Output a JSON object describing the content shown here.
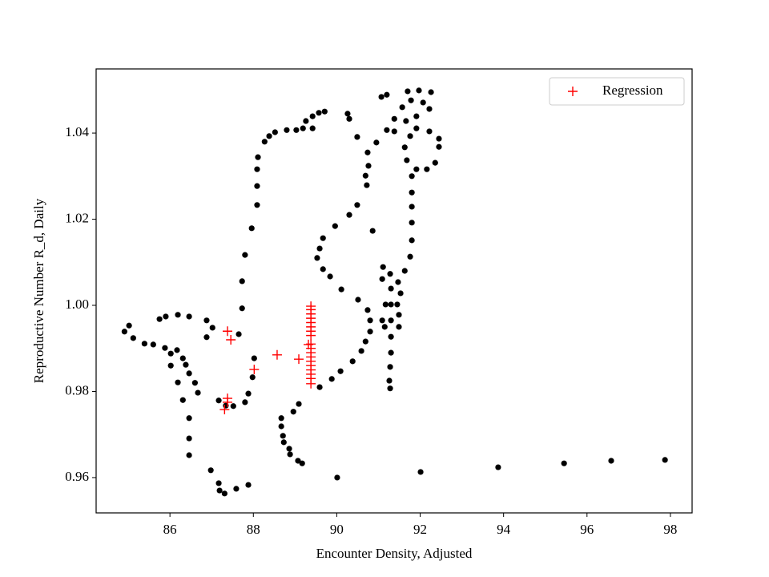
{
  "chart_data": {
    "type": "scatter",
    "xlabel": "Encounter Density, Adjusted",
    "ylabel": "Reproductive Number R_d, Daily",
    "xlim": [
      84.23,
      98.52
    ],
    "ylim": [
      0.9518,
      1.0549
    ],
    "xticks": [
      86,
      88,
      90,
      92,
      94,
      96,
      98
    ],
    "yticks": [
      0.96,
      0.98,
      {
        "value": 1,
        "label": "1.00"
      },
      1.02,
      1.04
    ],
    "legend": "upper right",
    "series": [
      {
        "color": "#000000",
        "marker": "o",
        "x": [
          97.87,
          96.58,
          95.45,
          93.87,
          92.01,
          90.01,
          89.17,
          89.07,
          88.88,
          88.86,
          88.73,
          88.71,
          88.67,
          88.67,
          88.96,
          89.09,
          89.59,
          89.88,
          90.09,
          90.38,
          90.59,
          90.69,
          90.8,
          90.8,
          90.74,
          90.51,
          90.11,
          89.84,
          89.67,
          89.53,
          89.59,
          89.67,
          89.96,
          90.3,
          90.49,
          90.72,
          90.69,
          90.76,
          90.74,
          90.49,
          90.3,
          90.26,
          90.86,
          90.95,
          91.2,
          91.38,
          91.57,
          91.78,
          92.07,
          92.22,
          92.45,
          92.45,
          92.36,
          92.16,
          91.91,
          91.68,
          91.63,
          91.76,
          91.91,
          92.22,
          91.07,
          91.2,
          91.7,
          91.97,
          92.26,
          91.91,
          91.66,
          91.38,
          91.8,
          91.8,
          91.8,
          91.8,
          91.8,
          91.76,
          91.63,
          91.47,
          91.53,
          91.45,
          91.49,
          91.49,
          91.3,
          91.3,
          91.28,
          91.26,
          91.28,
          91.3,
          91.3,
          91.3,
          91.28,
          91.11,
          91.09,
          91.17,
          91.15,
          91.09,
          89.71,
          89.57,
          89.42,
          89.42,
          89.26,
          89.19,
          89.03,
          88.8,
          88.52,
          88.38,
          88.27,
          88.11,
          88.09,
          88.09,
          88.09,
          87.96,
          87.8,
          87.73,
          87.73,
          87.65,
          88.02,
          87.98,
          87.88,
          87.8,
          87.52,
          87.34,
          87.17,
          86.46,
          86.46,
          86.46,
          86.98,
          87.17,
          87.19,
          87.31,
          87.59,
          87.88,
          86.31,
          86.67,
          86.6,
          86.46,
          86.38,
          86.31,
          86.17,
          86.02,
          85.88,
          86.02,
          86.19,
          85.6,
          85.39,
          85.12,
          85.02,
          84.91,
          85.75,
          85.9,
          86.19,
          86.46,
          86.88,
          87.02,
          86.88
        ],
        "values": [
          0.9641,
          0.9639,
          0.9633,
          0.9624,
          0.9613,
          0.96,
          0.9633,
          0.9639,
          0.9654,
          0.9667,
          0.9682,
          0.9697,
          0.9719,
          0.9738,
          0.9753,
          0.9771,
          0.981,
          0.9829,
          0.9847,
          0.987,
          0.9894,
          0.9916,
          0.9939,
          0.9965,
          0.9989,
          1.0013,
          1.0037,
          1.0067,
          1.0084,
          1.011,
          1.0132,
          1.0156,
          1.0184,
          1.021,
          1.0233,
          1.0279,
          1.0301,
          1.0324,
          1.0355,
          1.0391,
          1.0433,
          1.0445,
          1.0173,
          1.0378,
          1.0407,
          1.0433,
          1.046,
          1.0476,
          1.0471,
          1.0456,
          1.0387,
          1.0368,
          1.0331,
          1.0316,
          1.0316,
          1.0337,
          1.0367,
          1.0393,
          1.0411,
          1.0404,
          1.0484,
          1.0489,
          1.0497,
          1.0499,
          1.0495,
          1.0439,
          1.0428,
          1.0404,
          1.03,
          1.0262,
          1.0229,
          1.0192,
          1.0151,
          1.0113,
          1.008,
          1.0054,
          1.0028,
          1.0002,
          0.9978,
          0.995,
          0.9927,
          0.989,
          0.9857,
          0.9825,
          0.9807,
          0.9965,
          1.0002,
          1.0039,
          1.0073,
          1.0089,
          1.0061,
          1.0002,
          0.995,
          0.9965,
          1.045,
          1.0447,
          1.0439,
          1.0411,
          1.0428,
          1.0411,
          1.0407,
          1.0407,
          1.0402,
          1.0393,
          1.038,
          1.0344,
          1.0316,
          1.0277,
          1.0233,
          1.0179,
          1.0117,
          1.0056,
          0.9993,
          0.9933,
          0.9877,
          0.9833,
          0.9795,
          0.9775,
          0.9766,
          0.9767,
          0.9779,
          0.9738,
          0.9691,
          0.9652,
          0.9617,
          0.9587,
          0.957,
          0.9563,
          0.9574,
          0.9583,
          0.978,
          0.9797,
          0.982,
          0.9842,
          0.9862,
          0.9877,
          0.9896,
          0.9888,
          0.9901,
          0.986,
          0.9821,
          0.9909,
          0.9911,
          0.9924,
          0.9953,
          0.9939,
          0.9968,
          0.9974,
          0.9978,
          0.9974,
          0.9965,
          0.9948,
          0.9926
        ]
      },
      {
        "name": "Regression",
        "color": "#ff0000",
        "marker": "+",
        "x": [
          87.38,
          87.46,
          88.02,
          88.57,
          89.09,
          87.38,
          87.31,
          87.38,
          89.32,
          89.38,
          89.38,
          89.38,
          89.38,
          89.38,
          89.38,
          89.38,
          89.38,
          89.38,
          89.38,
          89.38,
          89.38,
          89.38,
          89.38,
          89.38,
          89.38,
          89.38,
          89.38
        ],
        "values": [
          0.994,
          0.992,
          0.9851,
          0.9885,
          0.9875,
          0.9784,
          0.9758,
          0.9775,
          0.9909,
          0.9998,
          0.999,
          0.998,
          0.997,
          0.996,
          0.995,
          0.994,
          0.993,
          0.991,
          0.99,
          0.989,
          0.988,
          0.987,
          0.986,
          0.985,
          0.984,
          0.983,
          0.9818
        ]
      }
    ]
  }
}
